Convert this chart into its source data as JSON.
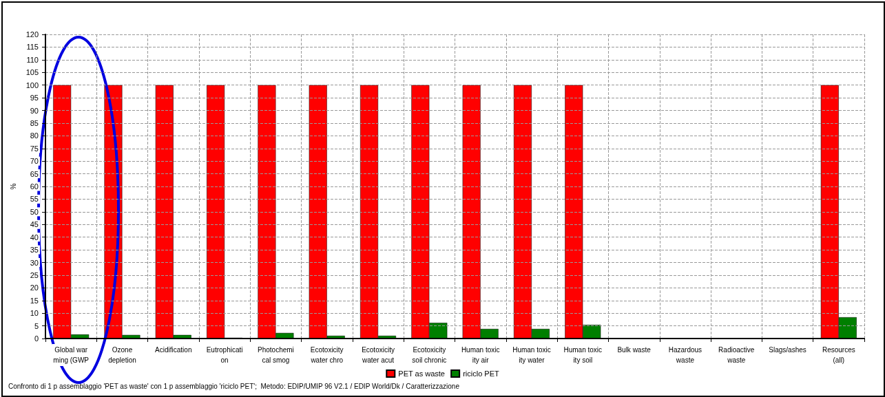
{
  "chart_data": {
    "type": "bar",
    "ylabel": "%",
    "categories": [
      "Global war\nming (GWP",
      "Ozone\ndepletion",
      "Acidification",
      "Eutrophicati\non",
      "Photochemi\ncal smog",
      "Ecotoxicity\nwater chro",
      "Ecotoxicity\nwater acut",
      "Ecotoxicity\nsoil chronic",
      "Human toxic\nity air",
      "Human toxic\nity water",
      "Human toxic\nity soil",
      "Bulk waste",
      "Hazardous\nwaste",
      "Radioactive\nwaste",
      "Slags/ashes",
      "Resources\n(all)"
    ],
    "series": [
      {
        "name": "PET as waste",
        "color": "#ff0000",
        "values": [
          100,
          100,
          100,
          100,
          100,
          100,
          100,
          100,
          100,
          100,
          100,
          null,
          null,
          null,
          null,
          100
        ]
      },
      {
        "name": "riciclo PET",
        "color": "#007f00",
        "values": [
          1.6,
          1.4,
          1.4,
          0.3,
          2.2,
          1.1,
          1.1,
          6.2,
          3.8,
          3.8,
          5.4,
          null,
          null,
          null,
          null,
          8.4
        ]
      }
    ],
    "ylim": [
      0,
      120
    ],
    "yticks": [
      0,
      5,
      10,
      15,
      20,
      25,
      30,
      35,
      40,
      45,
      50,
      55,
      60,
      65,
      70,
      75,
      80,
      85,
      90,
      95,
      100,
      105,
      110,
      115,
      120
    ],
    "grid": true,
    "legend": "bottom",
    "annotations": [
      "Confronto di 1 p assemblaggio 'PET as waste' con 1 p assemblaggio 'riciclo PET';  Metodo: EDIP/UMIP 96 V2.1 / EDIP World/Dk / Caratterizzazione"
    ]
  }
}
